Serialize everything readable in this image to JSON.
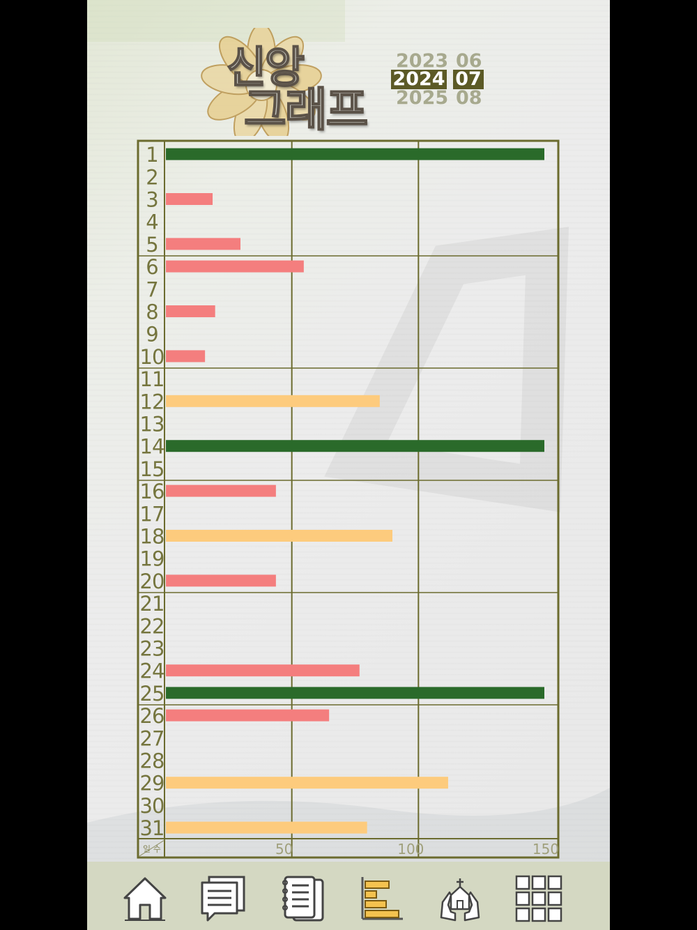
{
  "header": {
    "logo_text_line1": "신앙",
    "logo_text_line2": "그래프",
    "years": [
      {
        "year": "2023",
        "month": "06",
        "active": false
      },
      {
        "year": "2024",
        "month": "07",
        "active": true
      },
      {
        "year": "2025",
        "month": "08",
        "active": false
      }
    ]
  },
  "chart_data": {
    "type": "bar",
    "orientation": "horizontal",
    "xlim": [
      0,
      150
    ],
    "x_ticks": [
      "50",
      "100",
      "150"
    ],
    "corner_label": "일 수",
    "grid": true,
    "categories": [
      "1",
      "2",
      "3",
      "4",
      "5",
      "6",
      "7",
      "8",
      "9",
      "10",
      "11",
      "12",
      "13",
      "14",
      "15",
      "16",
      "17",
      "18",
      "19",
      "20",
      "21",
      "22",
      "23",
      "24",
      "25",
      "26",
      "27",
      "28",
      "29",
      "30",
      "31"
    ],
    "values": [
      150,
      0,
      19,
      0,
      30,
      55,
      0,
      20,
      0,
      16,
      0,
      85,
      0,
      150,
      0,
      44,
      0,
      90,
      0,
      44,
      0,
      0,
      0,
      77,
      150,
      65,
      0,
      0,
      112,
      0,
      80
    ],
    "bar_colors": [
      "#2a6a2a",
      "#f47e7e",
      "#f47e7e",
      "#f47e7e",
      "#f47e7e",
      "#f47e7e",
      "#f47e7e",
      "#f47e7e",
      "#f47e7e",
      "#f47e7e",
      "#f47e7e",
      "#fdcb7d",
      "#f47e7e",
      "#2a6a2a",
      "#f47e7e",
      "#f47e7e",
      "#f47e7e",
      "#fdcb7d",
      "#f47e7e",
      "#f47e7e",
      "#f47e7e",
      "#f47e7e",
      "#f47e7e",
      "#f47e7e",
      "#2a6a2a",
      "#f47e7e",
      "#f47e7e",
      "#f47e7e",
      "#fdcb7d",
      "#f47e7e",
      "#fdcb7d"
    ],
    "grid_color": "#6b6b2e"
  },
  "bottom_nav": [
    {
      "name": "home-icon"
    },
    {
      "name": "notes-icon"
    },
    {
      "name": "notebook-icon"
    },
    {
      "name": "bar-chart-icon"
    },
    {
      "name": "praying-hands-church-icon"
    },
    {
      "name": "grid-menu-icon"
    }
  ]
}
